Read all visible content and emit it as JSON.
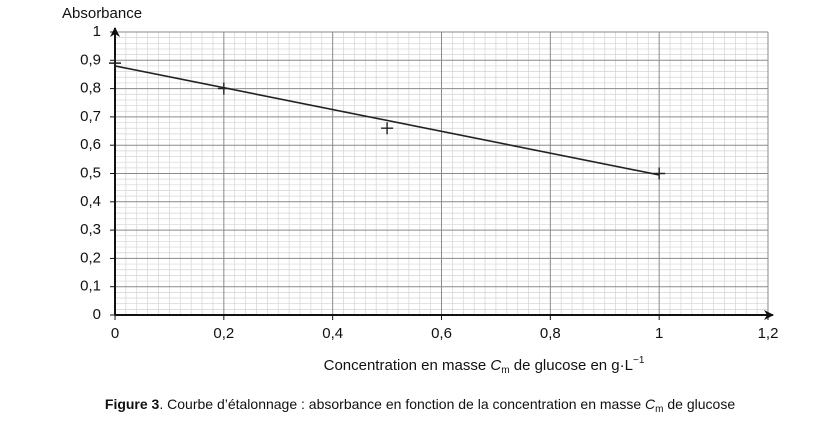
{
  "chart_data": {
    "type": "scatter",
    "ylabel": "Absorbance",
    "xlabel": {
      "before": "Concentration en masse ",
      "symbol": "C",
      "subscript": "m",
      "after": " de glucose en g·L",
      "superscript": "−1"
    },
    "caption": {
      "figure": "Figure 3",
      "before": ". Courbe d’étalonnage : absorbance en fonction de la concentration en masse ",
      "symbol": "C",
      "subscript": "m",
      "after": " de glucose"
    },
    "points": {
      "x": [
        0,
        0.2,
        0.5,
        1
      ],
      "y": [
        0.89,
        0.8,
        0.66,
        0.5
      ],
      "color": "#222222"
    },
    "fit_line": {
      "x": [
        0,
        1
      ],
      "y": [
        0.88,
        0.495
      ],
      "color": "#222222"
    },
    "xlim": [
      0,
      1.2
    ],
    "ylim": [
      0,
      1
    ],
    "xticks": [
      0,
      {
        "value": 0.2,
        "label": "0,2"
      },
      {
        "value": 0.4,
        "label": "0,4"
      },
      {
        "value": 0.6,
        "label": "0,6"
      },
      {
        "value": 0.8,
        "label": "0,8"
      },
      1,
      {
        "value": 1.2,
        "label": "1,2"
      }
    ],
    "yticks": [
      0,
      {
        "value": 0.1,
        "label": "0,1"
      },
      {
        "value": 0.2,
        "label": "0,2"
      },
      {
        "value": 0.3,
        "label": "0,3"
      },
      {
        "value": 0.4,
        "label": "0,4"
      },
      {
        "value": 0.5,
        "label": "0,5"
      },
      {
        "value": 0.6,
        "label": "0,6"
      },
      {
        "value": 0.7,
        "label": "0,7"
      },
      {
        "value": 0.8,
        "label": "0,8"
      },
      {
        "value": 0.9,
        "label": "0,9"
      },
      1
    ],
    "grid": true
  }
}
